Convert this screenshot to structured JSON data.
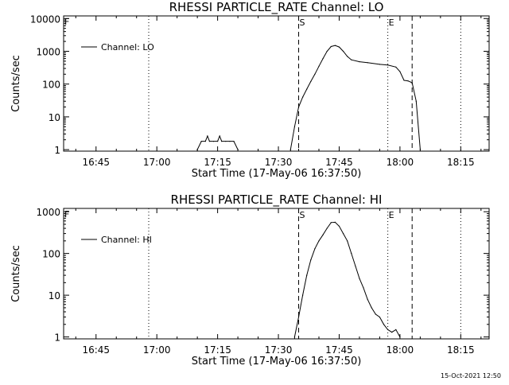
{
  "chart_data": [
    {
      "type": "line",
      "title": "RHESSI PARTICLE_RATE Channel: LO",
      "xlabel": "Start Time (17-May-06 16:37:50)",
      "ylabel": "Counts/sec",
      "y_scale": "log",
      "ylim": [
        0.9,
        12000
      ],
      "xlim_minutes": [
        "16:37",
        "18:22"
      ],
      "x_tick_labels": [
        "16:45",
        "17:00",
        "17:15",
        "17:30",
        "17:45",
        "18:00",
        "18:15"
      ],
      "y_tick_labels": [
        "1",
        "10",
        "100",
        "1000",
        "10000"
      ],
      "y_tick_values": [
        1,
        10,
        100,
        1000,
        10000
      ],
      "legend": {
        "label": "Channel: LO",
        "placement": "top-left"
      },
      "corner_marker": "F",
      "event_markers": [
        {
          "label": "S",
          "time": "17:35",
          "style": "dashed"
        },
        {
          "label": "E",
          "time": "17:57",
          "style": "dotted"
        }
      ],
      "vlines": [
        {
          "time": "16:58",
          "style": "dotted"
        },
        {
          "time": "17:35",
          "style": "dashed"
        },
        {
          "time": "17:57",
          "style": "dotted"
        },
        {
          "time": "18:03",
          "style": "dashed"
        },
        {
          "time": "18:15",
          "style": "dotted"
        }
      ],
      "series": [
        {
          "name": "Channel: LO",
          "x": [
            "17:10",
            "17:11",
            "17:12",
            "17:12.5",
            "17:13",
            "17:14",
            "17:15",
            "17:15.5",
            "17:16",
            "17:17",
            "17:18",
            "17:19",
            "17:20",
            "17:33",
            "17:34",
            "17:35",
            "17:36",
            "17:37",
            "17:38",
            "17:39",
            "17:40",
            "17:41",
            "17:42",
            "17:43",
            "17:44",
            "17:45",
            "17:46",
            "17:47",
            "17:48",
            "17:50",
            "17:52",
            "17:55",
            "17:57",
            "17:59",
            "18:00",
            "18:01",
            "18:02",
            "18:03",
            "18:04",
            "18:05"
          ],
          "y": [
            1,
            1.8,
            1.8,
            2.6,
            1.8,
            1.8,
            1.8,
            2.6,
            1.8,
            1.8,
            1.8,
            1.8,
            1,
            1,
            5,
            20,
            40,
            70,
            120,
            200,
            350,
            600,
            1000,
            1400,
            1500,
            1350,
            1000,
            700,
            550,
            480,
            450,
            400,
            380,
            330,
            240,
            130,
            125,
            110,
            30,
            1
          ]
        }
      ]
    },
    {
      "type": "line",
      "title": "RHESSI PARTICLE_RATE Channel: HI",
      "xlabel": "Start Time (17-May-06 16:37:50)",
      "ylabel": "Counts/sec",
      "y_scale": "log",
      "ylim": [
        0.9,
        1200
      ],
      "xlim_minutes": [
        "16:37",
        "18:22"
      ],
      "x_tick_labels": [
        "16:45",
        "17:00",
        "17:15",
        "17:30",
        "17:45",
        "18:00",
        "18:15"
      ],
      "y_tick_labels": [
        "1",
        "10",
        "100",
        "1000"
      ],
      "y_tick_values": [
        1,
        10,
        100,
        1000
      ],
      "legend": {
        "label": "Channel: HI",
        "placement": "top-left"
      },
      "corner_marker": "F",
      "event_markers": [
        {
          "label": "S",
          "time": "17:35",
          "style": "dashed"
        },
        {
          "label": "E",
          "time": "17:57",
          "style": "dotted"
        }
      ],
      "vlines": [
        {
          "time": "16:58",
          "style": "dotted"
        },
        {
          "time": "17:35",
          "style": "dashed"
        },
        {
          "time": "17:57",
          "style": "dotted"
        },
        {
          "time": "18:03",
          "style": "dashed"
        },
        {
          "time": "18:15",
          "style": "dotted"
        }
      ],
      "series": [
        {
          "name": "Channel: HI",
          "x": [
            "17:34",
            "17:35",
            "17:36",
            "17:37",
            "17:38",
            "17:39",
            "17:40",
            "17:41",
            "17:42",
            "17:43",
            "17:44",
            "17:45",
            "17:46",
            "17:47",
            "17:48",
            "17:49",
            "17:50",
            "17:51",
            "17:52",
            "17:53",
            "17:54",
            "17:55",
            "17:56",
            "17:57",
            "17:58",
            "17:59",
            "18:00"
          ],
          "y": [
            1,
            3,
            10,
            30,
            70,
            130,
            200,
            280,
            400,
            550,
            560,
            450,
            300,
            200,
            100,
            50,
            25,
            15,
            8,
            5,
            3.5,
            3,
            2,
            1.5,
            1.3,
            1.5,
            1
          ]
        }
      ]
    }
  ],
  "footer": {
    "timestamp": "15-Oct-2021 12:50"
  }
}
